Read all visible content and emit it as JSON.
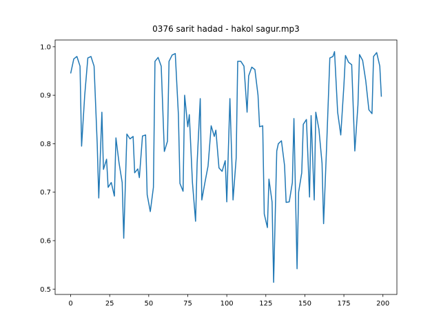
{
  "chart_data": {
    "type": "line",
    "title": "0376 sarit hadad - hakol sagur.mp3",
    "xlim": [
      -9.95,
      208.95
    ],
    "ylim": [
      0.489,
      1.014
    ],
    "xticks": [
      0,
      25,
      50,
      75,
      100,
      125,
      150,
      175,
      200
    ],
    "yticks": [
      0.5,
      0.6,
      0.7,
      0.8,
      0.9,
      {
        "value": 1,
        "label": "1.0"
      }
    ],
    "series": [
      {
        "color": "#1f77b4",
        "x": [
          0,
          2,
          4,
          6,
          7,
          9,
          11,
          13,
          15,
          17,
          18,
          20,
          21,
          23,
          24,
          26,
          28,
          29,
          31,
          33,
          34,
          36,
          38,
          40,
          41,
          43,
          44,
          46,
          48,
          49,
          51,
          53,
          54,
          56,
          58,
          60,
          62,
          63,
          65,
          67,
          69,
          70,
          72,
          73,
          75,
          76,
          78,
          80,
          81,
          83,
          84,
          86,
          88,
          90,
          92,
          93,
          95,
          97,
          99,
          100,
          102,
          104,
          106,
          107,
          109,
          111,
          113,
          114,
          116,
          118,
          120,
          121,
          123,
          124,
          126,
          127,
          129,
          130,
          132,
          133,
          135,
          137,
          138,
          140,
          142,
          143,
          145,
          146,
          148,
          149,
          151,
          153,
          154,
          156,
          157,
          159,
          161,
          162,
          164,
          166,
          168,
          169,
          171,
          173,
          175,
          176,
          178,
          180,
          182,
          184,
          185,
          187,
          189,
          191,
          193,
          194,
          196,
          198,
          199
        ],
        "values": [
          0.945,
          0.975,
          0.98,
          0.96,
          0.795,
          0.9,
          0.977,
          0.98,
          0.96,
          0.8,
          0.688,
          0.865,
          0.747,
          0.768,
          0.71,
          0.72,
          0.692,
          0.812,
          0.76,
          0.72,
          0.605,
          0.82,
          0.81,
          0.815,
          0.74,
          0.748,
          0.73,
          0.816,
          0.818,
          0.695,
          0.66,
          0.71,
          0.97,
          0.978,
          0.96,
          0.784,
          0.805,
          0.97,
          0.983,
          0.986,
          0.86,
          0.718,
          0.702,
          0.9,
          0.835,
          0.86,
          0.72,
          0.64,
          0.76,
          0.893,
          0.684,
          0.72,
          0.754,
          0.837,
          0.815,
          0.828,
          0.75,
          0.743,
          0.765,
          0.68,
          0.893,
          0.684,
          0.77,
          0.97,
          0.97,
          0.96,
          0.865,
          0.94,
          0.958,
          0.953,
          0.9,
          0.835,
          0.837,
          0.655,
          0.627,
          0.727,
          0.68,
          0.514,
          0.785,
          0.8,
          0.806,
          0.755,
          0.679,
          0.68,
          0.72,
          0.852,
          0.542,
          0.7,
          0.74,
          0.84,
          0.85,
          0.69,
          0.858,
          0.684,
          0.865,
          0.83,
          0.76,
          0.635,
          0.8,
          0.977,
          0.98,
          0.99,
          0.865,
          0.818,
          0.92,
          0.982,
          0.968,
          0.963,
          0.785,
          0.88,
          0.984,
          0.972,
          0.93,
          0.87,
          0.862,
          0.98,
          0.988,
          0.96,
          0.897
        ]
      }
    ]
  }
}
